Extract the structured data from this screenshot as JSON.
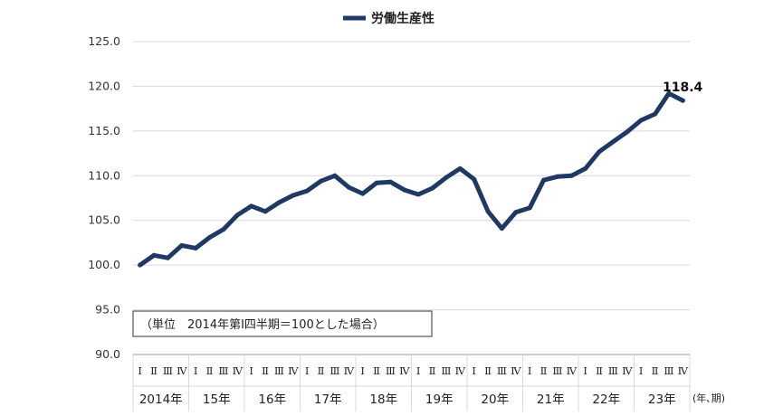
{
  "chart_data": {
    "type": "line",
    "legend": {
      "label": "労働生産性",
      "position": "top-center"
    },
    "series": [
      {
        "name": "労働生産性",
        "color": "#1f3864",
        "values": [
          100.0,
          101.1,
          100.8,
          102.2,
          101.9,
          103.1,
          104.0,
          105.6,
          106.6,
          106.0,
          107.0,
          107.8,
          108.3,
          109.4,
          110.0,
          108.7,
          108.0,
          109.2,
          109.3,
          108.4,
          107.9,
          108.6,
          109.8,
          110.8,
          109.6,
          106.0,
          104.1,
          105.9,
          106.4,
          109.5,
          109.9,
          110.0,
          110.8,
          112.7,
          113.8,
          114.9,
          116.2,
          116.9,
          119.2,
          118.4
        ]
      }
    ],
    "quarter_labels": [
      "Ⅰ",
      "Ⅱ",
      "Ⅲ",
      "Ⅳ"
    ],
    "year_labels": [
      "2014年",
      "15年",
      "16年",
      "17年",
      "18年",
      "19年",
      "20年",
      "21年",
      "22年",
      "23年"
    ],
    "y_ticks": [
      "125.0",
      "120.0",
      "115.0",
      "110.0",
      "105.0",
      "100.0",
      "95.0",
      "90.0"
    ],
    "ylim": [
      90,
      125
    ],
    "grid": true,
    "x_unit_label": "(年､期)",
    "note": "（単位　2014年第Ⅰ四半期＝100とした場合）",
    "last_value_label": "118.4"
  }
}
